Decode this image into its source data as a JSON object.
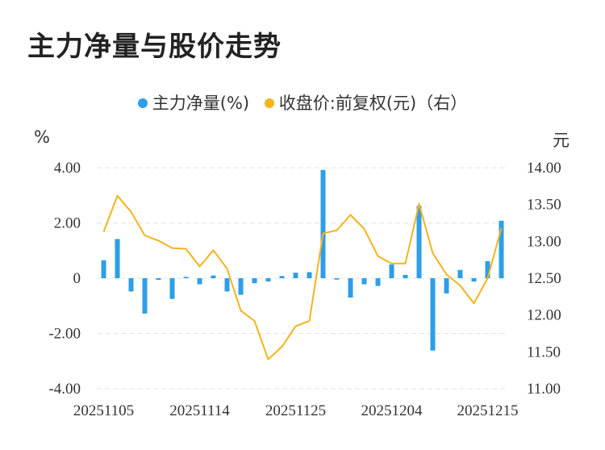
{
  "title": "主力净量与股价走势",
  "legend": {
    "series1": "主力净量(%)",
    "series2": "收盘价:前复权(元)（右）"
  },
  "units": {
    "left": "%",
    "right": "元"
  },
  "colors": {
    "bar": "#2e9ee8",
    "line": "#f5b31c",
    "grid": "#e3e3e3"
  },
  "chart_data": {
    "type": "bar+line",
    "title": "主力净量与股价走势",
    "x_tick_labels": [
      "20251105",
      "20251114",
      "20251125",
      "20251204",
      "20251215"
    ],
    "x_tick_positions": [
      0,
      7,
      14,
      21,
      28
    ],
    "y_left": {
      "label": "%",
      "lim": [
        -4,
        4
      ],
      "ticks": [
        -4,
        -2,
        0,
        2,
        4
      ],
      "tick_labels": [
        "-4.00",
        "-2.00",
        "0",
        "2.00",
        "4.00"
      ]
    },
    "y_right": {
      "label": "元",
      "lim": [
        11,
        14
      ],
      "ticks": [
        11,
        11.5,
        12,
        12.5,
        13,
        13.5,
        14
      ],
      "tick_labels": [
        "11.00",
        "11.50",
        "12.00",
        "12.50",
        "13.00",
        "13.50",
        "14.00"
      ]
    },
    "series": [
      {
        "name": "主力净量(%)",
        "type": "bar",
        "axis": "left",
        "values": [
          0.65,
          1.42,
          -0.48,
          -1.28,
          -0.06,
          -0.75,
          0.05,
          -0.22,
          0.1,
          -0.48,
          -0.6,
          -0.18,
          -0.12,
          0.08,
          0.2,
          0.22,
          3.92,
          -0.05,
          -0.7,
          -0.22,
          -0.28,
          0.5,
          0.12,
          2.62,
          -2.62,
          -0.55,
          0.3,
          -0.12,
          0.62,
          2.08
        ]
      },
      {
        "name": "收盘价:前复权(元)（右）",
        "type": "line",
        "axis": "right",
        "values": [
          13.13,
          13.62,
          13.4,
          13.08,
          13.01,
          12.91,
          12.9,
          12.66,
          12.88,
          12.63,
          12.06,
          11.92,
          11.4,
          11.57,
          11.85,
          11.92,
          13.11,
          13.15,
          13.36,
          13.17,
          12.8,
          12.7,
          12.7,
          13.51,
          12.84,
          12.55,
          12.4,
          12.16,
          12.5,
          13.18
        ]
      }
    ]
  }
}
